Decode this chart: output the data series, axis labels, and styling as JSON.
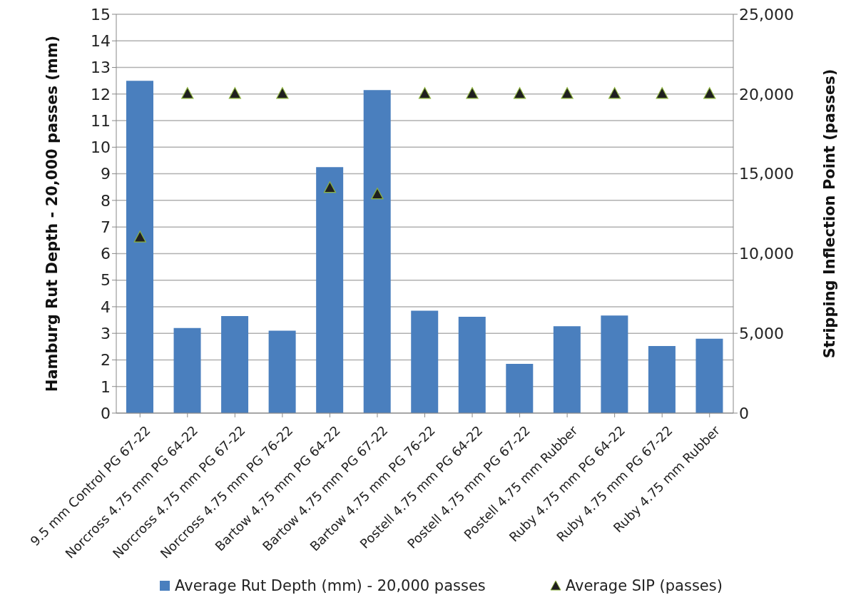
{
  "chart_data": {
    "type": "bar",
    "ylabel": "Hamburg Rut Depth - 20,000 passes (mm)",
    "y2label": "Stripping Inflection Point (passes)",
    "categories": [
      "9.5 mm Control PG 67-22",
      "Norcross 4.75 mm PG 64-22",
      "Norcross 4.75 mm PG 67-22",
      "Norcross 4.75 mm PG 76-22",
      "Bartow 4.75 mm PG 64-22",
      "Bartow 4.75 mm PG 67-22",
      "Bartow 4.75 mm PG 76-22",
      "Postell 4.75 mm PG 64-22",
      "Postell 4.75 mm PG 67-22",
      "Postell 4.75 mm Rubber",
      "Ruby 4.75 mm PG 64-22",
      "Ruby 4.75 mm PG 67-22",
      "Ruby 4.75 mm Rubber"
    ],
    "series": [
      {
        "name": "Average Rut Depth (mm) - 20,000 passes",
        "color": "#4a7fbe",
        "values": [
          12.5,
          3.2,
          3.65,
          3.1,
          9.25,
          12.15,
          3.85,
          3.62,
          1.85,
          3.27,
          3.67,
          2.52,
          2.8
        ]
      },
      {
        "name": "Average SIP (passes)",
        "type": "scatter",
        "axis": "y2",
        "color": "#1f1f1f",
        "marker": "triangle",
        "values": [
          11000,
          20000,
          20000,
          20000,
          14100,
          13700,
          20000,
          20000,
          20000,
          20000,
          20000,
          20000,
          20000
        ]
      }
    ],
    "ylim": [
      0,
      15
    ],
    "yticks": [
      0,
      1,
      2,
      3,
      4,
      5,
      6,
      7,
      8,
      9,
      10,
      11,
      12,
      13,
      14,
      15
    ],
    "y2lim": [
      0,
      25000
    ],
    "y2ticks": [
      {
        "value": 0,
        "label": "0"
      },
      {
        "value": 5000,
        "label": "5,000"
      },
      {
        "value": 10000,
        "label": "10,000"
      },
      {
        "value": 15000,
        "label": "15,000"
      },
      {
        "value": 20000,
        "label": "20,000"
      },
      {
        "value": 25000,
        "label": "25,000"
      }
    ],
    "grid": "y",
    "legend": "bottom"
  }
}
